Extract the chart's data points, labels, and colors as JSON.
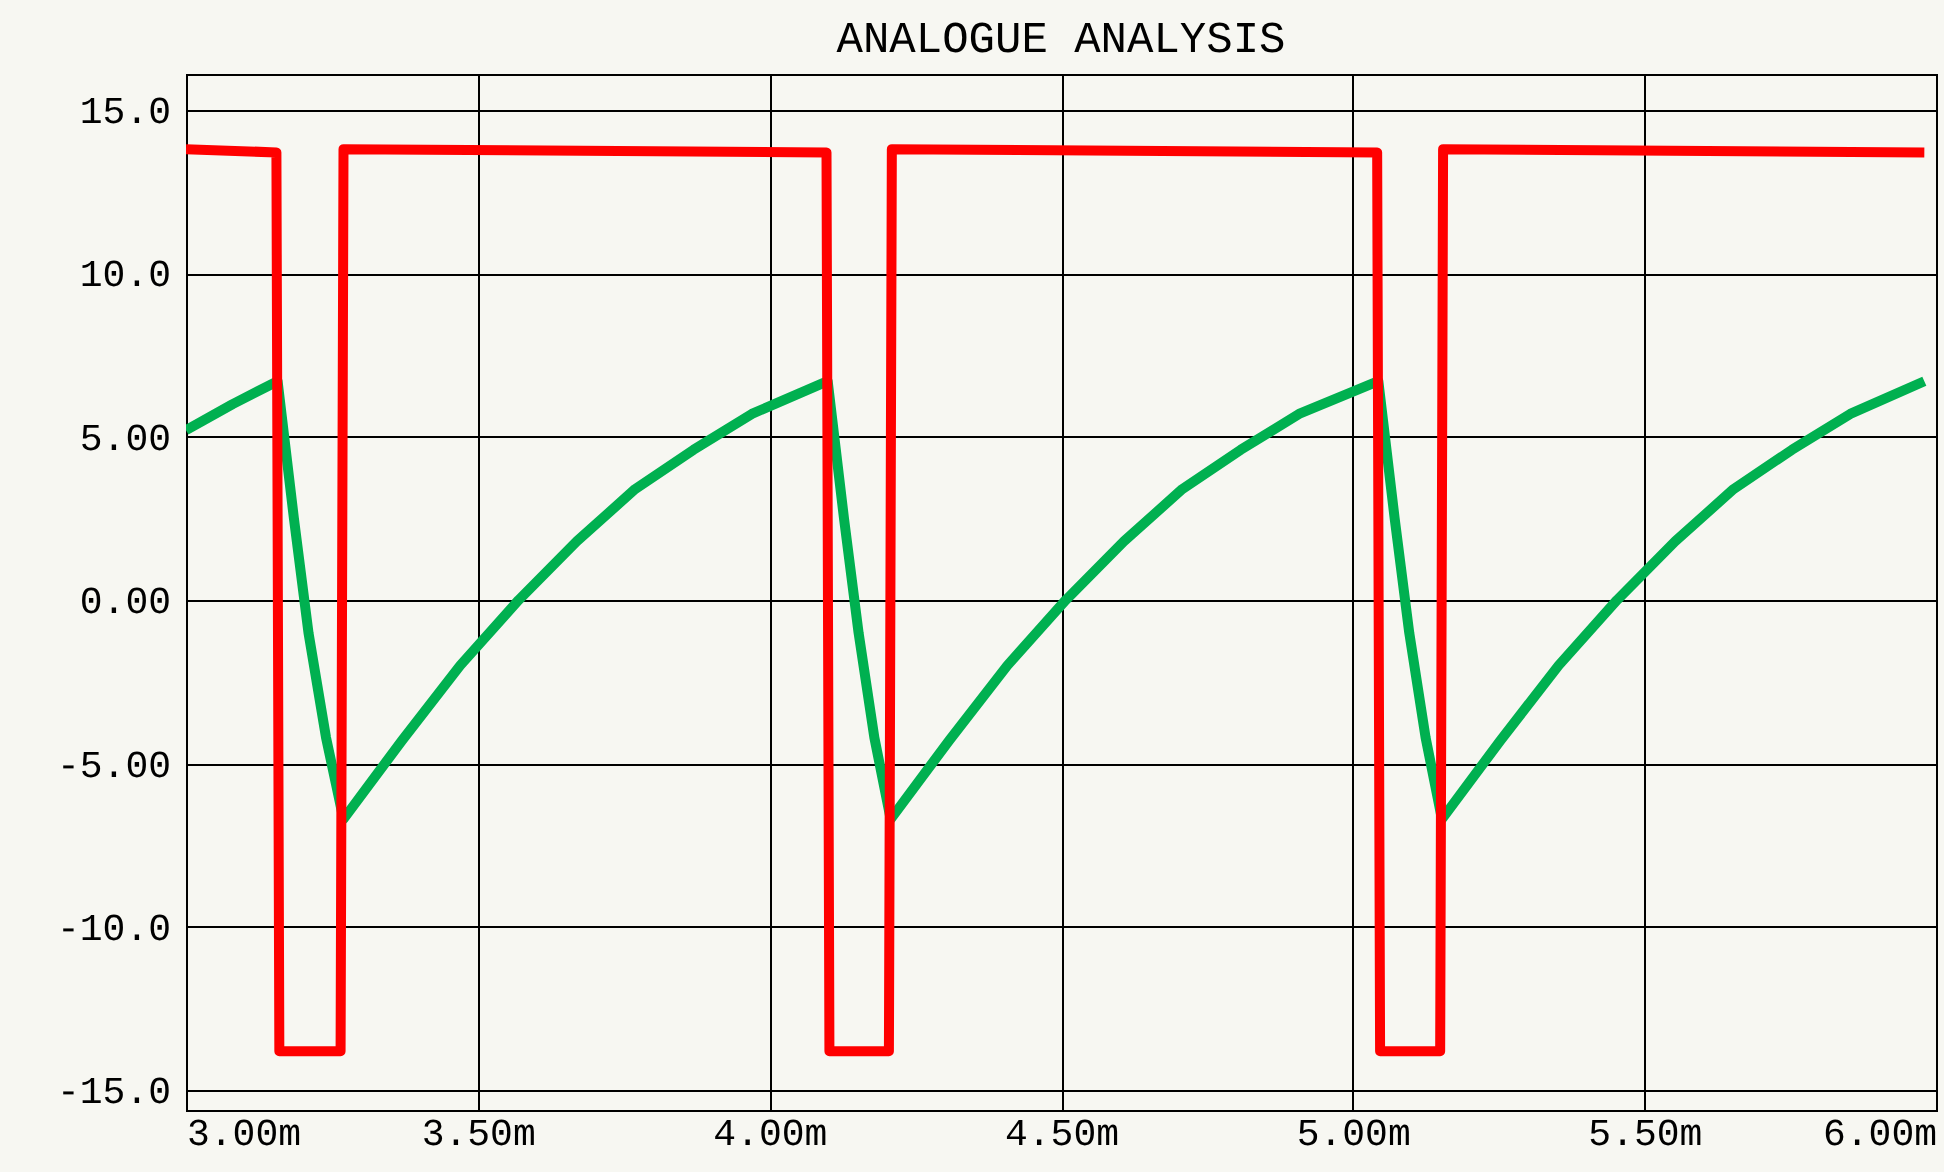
{
  "chart_data": {
    "type": "line",
    "title": "ANALOGUE ANALYSIS",
    "xlim": [
      3.0,
      6.0
    ],
    "ylim": [
      -15.6,
      16.1
    ],
    "xticks": [
      {
        "value": 3.0,
        "label": "3.00m"
      },
      {
        "value": 3.5,
        "label": "3.50m"
      },
      {
        "value": 4.0,
        "label": "4.00m"
      },
      {
        "value": 4.5,
        "label": "4.50m"
      },
      {
        "value": 5.0,
        "label": "5.00m"
      },
      {
        "value": 5.5,
        "label": "5.50m"
      },
      {
        "value": 6.0,
        "label": "6.00m"
      }
    ],
    "yticks": [
      {
        "value": 15,
        "label": "15.0"
      },
      {
        "value": 10,
        "label": "10.0"
      },
      {
        "value": 5,
        "label": "5.00"
      },
      {
        "value": 0,
        "label": "0.00"
      },
      {
        "value": -5,
        "label": "-5.00"
      },
      {
        "value": -10,
        "label": "-10.0"
      },
      {
        "value": -15,
        "label": "-15.0"
      }
    ],
    "grid": true,
    "marker": "none",
    "line_style": "solid",
    "series": [
      {
        "color": "#00b050",
        "x": [
          3.0,
          3.08,
          3.157,
          3.185,
          3.21,
          3.24,
          3.27,
          3.37,
          3.47,
          3.57,
          3.67,
          3.77,
          3.87,
          3.97,
          4.1,
          4.128,
          4.153,
          4.18,
          4.208,
          4.308,
          4.408,
          4.508,
          4.608,
          4.708,
          4.808,
          4.908,
          5.044,
          5.072,
          5.097,
          5.125,
          5.153,
          5.253,
          5.353,
          5.453,
          5.553,
          5.653,
          5.753,
          5.853,
          5.98
        ],
        "values": [
          5.2,
          6.0,
          6.7,
          2.5,
          -1.0,
          -4.2,
          -6.7,
          -4.3,
          -2.0,
          0.0,
          1.8,
          3.4,
          4.6,
          5.7,
          6.7,
          2.5,
          -1.0,
          -4.2,
          -6.7,
          -4.3,
          -2.0,
          0.0,
          1.8,
          3.4,
          4.6,
          5.7,
          6.7,
          2.5,
          -1.0,
          -4.2,
          -6.7,
          -4.3,
          -2.0,
          0.0,
          1.8,
          3.4,
          4.6,
          5.7,
          6.7
        ]
      },
      {
        "color": "#ff0000",
        "x": [
          3.0,
          3.155,
          3.16,
          3.265,
          3.27,
          4.098,
          4.103,
          4.205,
          4.21,
          5.042,
          5.047,
          5.15,
          5.155,
          5.98
        ],
        "values": [
          13.8,
          13.7,
          -13.8,
          -13.8,
          13.8,
          13.7,
          -13.8,
          -13.8,
          13.8,
          13.7,
          -13.8,
          -13.8,
          13.8,
          13.7
        ]
      }
    ]
  }
}
